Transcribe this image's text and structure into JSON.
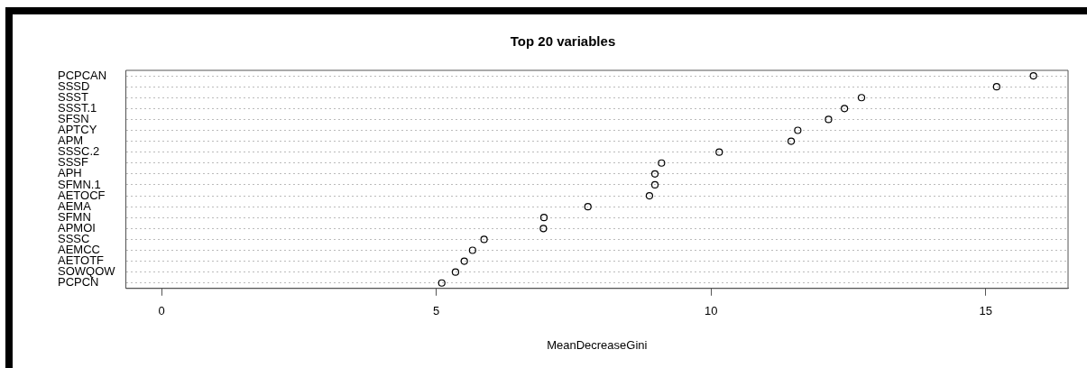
{
  "chart_data": {
    "type": "scatter",
    "title": "Top 20 variables",
    "xlabel": "MeanDecreaseGini",
    "orientation": "horizontal",
    "categories": [
      "PCPCAN",
      "SSSD",
      "SSST",
      "SSST.1",
      "SFSN",
      "APTCY",
      "APM",
      "SSSC.2",
      "SSSF",
      "APH",
      "SFMN.1",
      "AETOCF",
      "AEMA",
      "SFMN",
      "APMOI",
      "SSSC",
      "AEMCC",
      "AETOTF",
      "SOWQOW",
      "PCPCN"
    ],
    "values": [
      15.87,
      15.2,
      12.74,
      12.43,
      12.14,
      11.58,
      11.46,
      10.15,
      9.1,
      8.98,
      8.98,
      8.88,
      7.76,
      6.96,
      6.95,
      5.87,
      5.66,
      5.51,
      5.35,
      5.1
    ],
    "color": "#000000",
    "marker": "circle",
    "grid": "y",
    "xlim": [
      -0.65,
      16.5
    ],
    "xticks": [
      0,
      5,
      10,
      15
    ]
  }
}
